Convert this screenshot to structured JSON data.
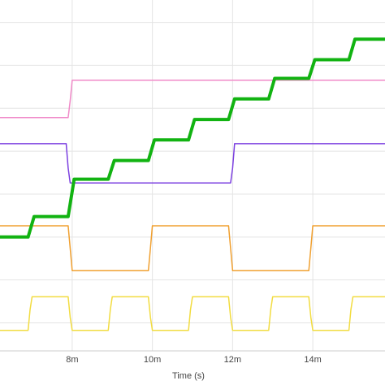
{
  "chart_data": {
    "type": "line",
    "title": "",
    "xlabel": "Time (s)",
    "ylabel": "",
    "grid": true,
    "legend": "none",
    "xlim": [
      6.2,
      15.8
    ],
    "ylim": [
      0,
      9.4
    ],
    "x_ticks": [
      {
        "value": 8,
        "label": "8m"
      },
      {
        "value": 10,
        "label": "10m"
      },
      {
        "value": 12,
        "label": "12m"
      },
      {
        "value": 14,
        "label": "14m"
      }
    ],
    "y_gridlines": [
      0.75,
      1.9,
      3.05,
      4.2,
      5.35,
      6.5,
      7.65,
      8.8
    ],
    "series": [
      {
        "color": "#f08ac8",
        "width": 1.5,
        "points": [
          [
            6.2,
            6.25
          ],
          [
            7.9,
            6.25
          ],
          [
            7.95,
            6.7
          ],
          [
            8.0,
            7.25
          ],
          [
            15.8,
            7.25
          ]
        ]
      },
      {
        "color": "#7b3fe0",
        "width": 1.5,
        "points": [
          [
            6.2,
            5.55
          ],
          [
            7.85,
            5.55
          ],
          [
            7.9,
            4.9
          ],
          [
            7.95,
            4.5
          ],
          [
            11.95,
            4.5
          ],
          [
            12.0,
            4.9
          ],
          [
            12.05,
            5.55
          ],
          [
            15.8,
            5.55
          ]
        ]
      },
      {
        "color": "#f0a030",
        "width": 1.5,
        "points": [
          [
            6.2,
            3.35
          ],
          [
            7.9,
            3.35
          ],
          [
            7.95,
            2.75
          ],
          [
            8.0,
            2.15
          ],
          [
            9.9,
            2.15
          ],
          [
            9.95,
            2.75
          ],
          [
            10.0,
            3.35
          ],
          [
            11.9,
            3.35
          ],
          [
            11.95,
            2.75
          ],
          [
            12.0,
            2.15
          ],
          [
            13.9,
            2.15
          ],
          [
            13.95,
            2.75
          ],
          [
            14.0,
            3.35
          ],
          [
            15.8,
            3.35
          ]
        ]
      },
      {
        "color": "#f2dc40",
        "width": 1.5,
        "points": [
          [
            6.2,
            0.55
          ],
          [
            6.9,
            0.55
          ],
          [
            6.95,
            1.1
          ],
          [
            7.0,
            1.45
          ],
          [
            7.9,
            1.45
          ],
          [
            7.95,
            0.9
          ],
          [
            8.0,
            0.55
          ],
          [
            8.9,
            0.55
          ],
          [
            8.95,
            1.1
          ],
          [
            9.0,
            1.45
          ],
          [
            9.9,
            1.45
          ],
          [
            9.95,
            0.9
          ],
          [
            10.0,
            0.55
          ],
          [
            10.9,
            0.55
          ],
          [
            10.95,
            1.1
          ],
          [
            11.0,
            1.45
          ],
          [
            11.9,
            1.45
          ],
          [
            11.95,
            0.9
          ],
          [
            12.0,
            0.55
          ],
          [
            12.9,
            0.55
          ],
          [
            12.95,
            1.1
          ],
          [
            13.0,
            1.45
          ],
          [
            13.9,
            1.45
          ],
          [
            13.95,
            0.9
          ],
          [
            14.0,
            0.55
          ],
          [
            14.9,
            0.55
          ],
          [
            14.95,
            1.1
          ],
          [
            15.0,
            1.45
          ],
          [
            15.8,
            1.45
          ]
        ]
      },
      {
        "color": "#12b312",
        "width": 4,
        "points": [
          [
            6.2,
            3.05
          ],
          [
            6.9,
            3.05
          ],
          [
            7.05,
            3.6
          ],
          [
            7.9,
            3.6
          ],
          [
            8.05,
            4.6
          ],
          [
            8.9,
            4.6
          ],
          [
            9.05,
            5.1
          ],
          [
            9.9,
            5.1
          ],
          [
            10.05,
            5.65
          ],
          [
            10.9,
            5.65
          ],
          [
            11.05,
            6.2
          ],
          [
            11.9,
            6.2
          ],
          [
            12.05,
            6.75
          ],
          [
            12.9,
            6.75
          ],
          [
            13.05,
            7.3
          ],
          [
            13.9,
            7.3
          ],
          [
            14.05,
            7.8
          ],
          [
            14.9,
            7.8
          ],
          [
            15.05,
            8.35
          ],
          [
            15.8,
            8.35
          ]
        ]
      }
    ]
  }
}
